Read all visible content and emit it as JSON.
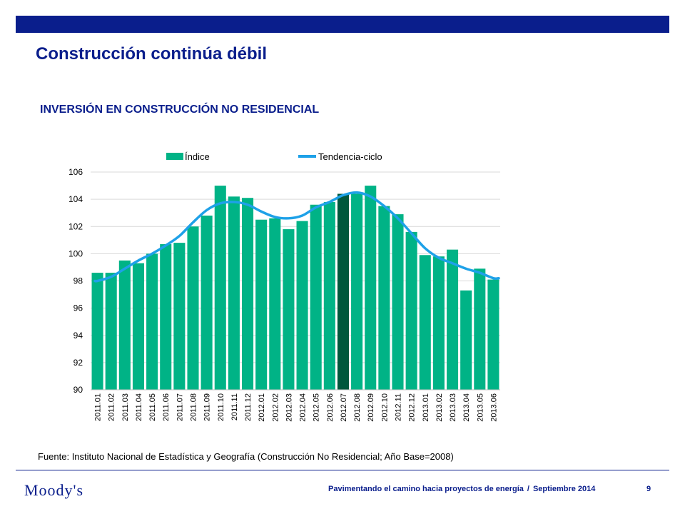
{
  "header": {
    "title": "Construcción continúa débil",
    "bar_color": "#0a1e8c"
  },
  "chart_title": "INVERSIÓN EN CONSTRUCCIÓN NO RESIDENCIAL",
  "chart_data": {
    "type": "bar",
    "categories": [
      "2011.01",
      "2011.02",
      "2011.03",
      "2011.04",
      "2011.05",
      "2011.06",
      "2011.07",
      "2011.08",
      "2011.09",
      "2011.10",
      "2011.11",
      "2011.12",
      "2012.01",
      "2012.02",
      "2012.03",
      "2012.04",
      "2012.05",
      "2012.06",
      "2012.07",
      "2012.08",
      "2012.09",
      "2012.10",
      "2012.11",
      "2012.12",
      "2013.01",
      "2013.02",
      "2013.03",
      "2013.04",
      "2013.05",
      "2013.06"
    ],
    "series": [
      {
        "name": "Índice",
        "type": "bar",
        "color": "#00b386",
        "highlight_color": "#00573c",
        "highlight_category": "2012.07",
        "values": [
          98.6,
          98.6,
          99.5,
          99.3,
          100.0,
          100.7,
          100.8,
          102.0,
          102.8,
          105.0,
          104.2,
          104.1,
          102.5,
          102.6,
          101.8,
          102.4,
          103.6,
          103.8,
          104.4,
          104.4,
          105.0,
          103.5,
          102.9,
          101.6,
          99.9,
          99.8,
          100.3,
          97.3,
          98.9,
          98.1
        ]
      },
      {
        "name": "Tendencia-ciclo",
        "type": "line",
        "color": "#1ea1e8",
        "values": [
          98.0,
          98.3,
          98.9,
          99.5,
          100.0,
          100.6,
          101.3,
          102.3,
          103.2,
          103.7,
          103.8,
          103.6,
          103.1,
          102.7,
          102.6,
          102.8,
          103.4,
          103.8,
          104.3,
          104.5,
          104.2,
          103.5,
          102.6,
          101.5,
          100.4,
          99.7,
          99.3,
          98.9,
          98.6,
          98.2
        ]
      }
    ],
    "ylim": [
      90,
      106
    ],
    "y_ticks": [
      "90",
      "92",
      "94",
      "96",
      "98",
      "100",
      "102",
      "104",
      "106"
    ],
    "grid": true,
    "legend_position": "top"
  },
  "source": "Fuente: Instituto Nacional de Estadística y Geografía (Construcción No Residencial; Año Base=2008)",
  "footer": {
    "logo": "Moody's",
    "left_text": "Pavimentando el camino hacia proyectos de energía",
    "separator": "/",
    "right_text": "Septiembre 2014",
    "page": "9"
  }
}
